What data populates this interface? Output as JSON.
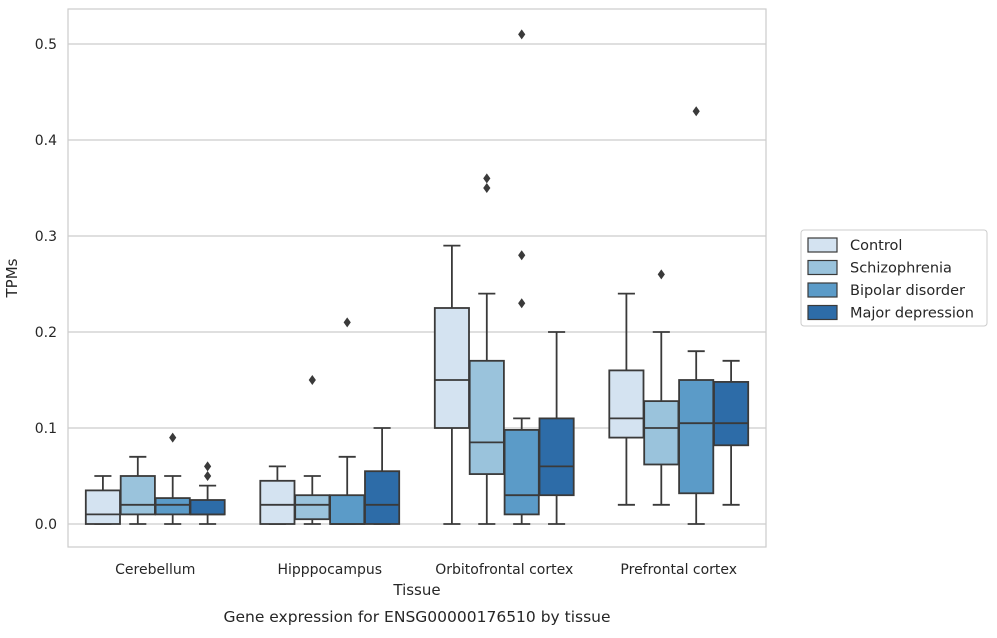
{
  "chart_data": {
    "type": "box",
    "xlabel": "Tissue",
    "ylabel": "TPMs",
    "caption": "Gene expression for ENSG00000176510 by tissue",
    "ylim": [
      -0.025,
      0.537
    ],
    "yticks": [
      0.0,
      0.1,
      0.2,
      0.3,
      0.4,
      0.5
    ],
    "ytick_labels": [
      "0.0",
      "0.1",
      "0.2",
      "0.3",
      "0.4",
      "0.5"
    ],
    "grid": "horizontal",
    "legend_position": "right",
    "categories": [
      "Cerebellum",
      "Hipppocampus",
      "Orbitofrontal cortex",
      "Prefrontal cortex"
    ],
    "series": [
      {
        "name": "Control",
        "color": "#d4e3f1",
        "boxes": [
          {
            "whisker_low": 0.0,
            "q1": 0.0,
            "median": 0.01,
            "q3": 0.035,
            "whisker_high": 0.05,
            "outliers": []
          },
          {
            "whisker_low": 0.0,
            "q1": 0.0,
            "median": 0.02,
            "q3": 0.045,
            "whisker_high": 0.06,
            "outliers": []
          },
          {
            "whisker_low": 0.0,
            "q1": 0.1,
            "median": 0.15,
            "q3": 0.225,
            "whisker_high": 0.29,
            "outliers": []
          },
          {
            "whisker_low": 0.02,
            "q1": 0.09,
            "median": 0.11,
            "q3": 0.16,
            "whisker_high": 0.24,
            "outliers": []
          }
        ]
      },
      {
        "name": "Schizophrenia",
        "color": "#9ac3dc",
        "boxes": [
          {
            "whisker_low": 0.0,
            "q1": 0.01,
            "median": 0.02,
            "q3": 0.05,
            "whisker_high": 0.07,
            "outliers": []
          },
          {
            "whisker_low": 0.0,
            "q1": 0.005,
            "median": 0.02,
            "q3": 0.03,
            "whisker_high": 0.05,
            "outliers": [
              0.15
            ]
          },
          {
            "whisker_low": 0.0,
            "q1": 0.052,
            "median": 0.085,
            "q3": 0.17,
            "whisker_high": 0.24,
            "outliers": [
              0.35,
              0.36
            ]
          },
          {
            "whisker_low": 0.02,
            "q1": 0.062,
            "median": 0.1,
            "q3": 0.128,
            "whisker_high": 0.2,
            "outliers": [
              0.26
            ]
          }
        ]
      },
      {
        "name": "Bipolar disorder",
        "color": "#5b9bc8",
        "boxes": [
          {
            "whisker_low": 0.0,
            "q1": 0.01,
            "median": 0.02,
            "q3": 0.027,
            "whisker_high": 0.05,
            "outliers": [
              0.09
            ]
          },
          {
            "whisker_low": 0.0,
            "q1": 0.0,
            "median": 0.0,
            "q3": 0.03,
            "whisker_high": 0.07,
            "outliers": [
              0.21
            ]
          },
          {
            "whisker_low": 0.0,
            "q1": 0.01,
            "median": 0.03,
            "q3": 0.098,
            "whisker_high": 0.11,
            "outliers": [
              0.23,
              0.28,
              0.51
            ]
          },
          {
            "whisker_low": 0.0,
            "q1": 0.032,
            "median": 0.105,
            "q3": 0.15,
            "whisker_high": 0.18,
            "outliers": [
              0.43
            ]
          }
        ]
      },
      {
        "name": "Major depression",
        "color": "#2d6ca8",
        "boxes": [
          {
            "whisker_low": 0.0,
            "q1": 0.01,
            "median": 0.01,
            "q3": 0.025,
            "whisker_high": 0.04,
            "outliers": [
              0.05,
              0.06
            ]
          },
          {
            "whisker_low": 0.0,
            "q1": 0.0,
            "median": 0.02,
            "q3": 0.055,
            "whisker_high": 0.1,
            "outliers": []
          },
          {
            "whisker_low": 0.0,
            "q1": 0.03,
            "median": 0.06,
            "q3": 0.11,
            "whisker_high": 0.2,
            "outliers": []
          },
          {
            "whisker_low": 0.02,
            "q1": 0.082,
            "median": 0.105,
            "q3": 0.148,
            "whisker_high": 0.17,
            "outliers": []
          }
        ]
      }
    ]
  }
}
